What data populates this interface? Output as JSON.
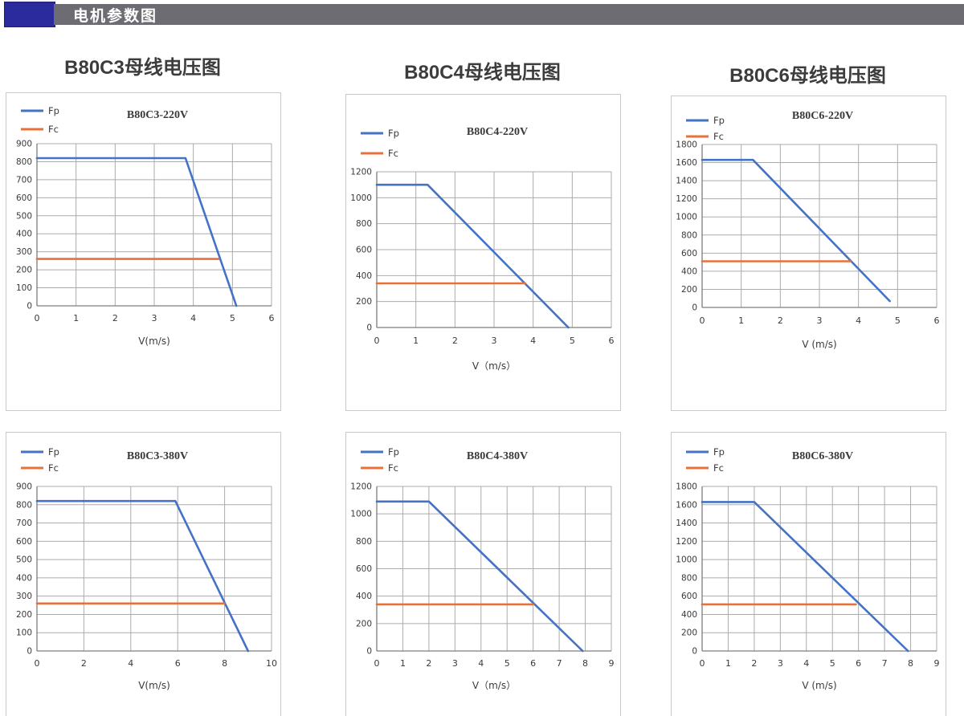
{
  "header": {
    "title": "电机参数图",
    "accent_color": "#2b2b9e",
    "bar_color": "#6c6c72"
  },
  "sections": [
    {
      "heading": "B80C3母线电压图"
    },
    {
      "heading": "B80C4母线电压图"
    },
    {
      "heading": "B80C6母线电压图"
    }
  ],
  "colors": {
    "fp": "#4472c4",
    "fc": "#e8713a",
    "grid": "#ababab",
    "axis": "#7d7d7d",
    "text": "#3a3a3a"
  },
  "chart_data": [
    {
      "type": "line",
      "title": "B80C3-220V",
      "xlabel": "V(m/s)",
      "xlim": [
        0,
        6
      ],
      "xticks": [
        0,
        1,
        2,
        3,
        4,
        5,
        6
      ],
      "ylim": [
        0,
        900
      ],
      "yticks": [
        0,
        100,
        200,
        300,
        400,
        500,
        600,
        700,
        800,
        900
      ],
      "grid": true,
      "legend_position": "top-left",
      "series": [
        {
          "name": "Fp",
          "color": "#4472c4",
          "points": [
            [
              0,
              820
            ],
            [
              3.8,
              820
            ],
            [
              5.1,
              0
            ]
          ]
        },
        {
          "name": "Fc",
          "color": "#e8713a",
          "points": [
            [
              0,
              260
            ],
            [
              4.65,
              260
            ]
          ]
        }
      ]
    },
    {
      "type": "line",
      "title": "B80C4-220V",
      "xlabel": "V（m/s）",
      "xlim": [
        0,
        6
      ],
      "xticks": [
        0,
        1,
        2,
        3,
        4,
        5,
        6
      ],
      "ylim": [
        0,
        1200
      ],
      "yticks": [
        0,
        200,
        400,
        600,
        800,
        1000,
        1200
      ],
      "grid": true,
      "legend_position": "top-left",
      "series": [
        {
          "name": "Fp",
          "color": "#4472c4",
          "points": [
            [
              0,
              1100
            ],
            [
              1.3,
              1100
            ],
            [
              4.9,
              0
            ]
          ]
        },
        {
          "name": "Fc",
          "color": "#e8713a",
          "points": [
            [
              0,
              340
            ],
            [
              3.8,
              340
            ]
          ]
        }
      ]
    },
    {
      "type": "line",
      "title": "B80C6-220V",
      "xlabel": "V (m/s)",
      "xlim": [
        0,
        6
      ],
      "xticks": [
        0,
        1,
        2,
        3,
        4,
        5,
        6
      ],
      "ylim": [
        0,
        1800
      ],
      "yticks": [
        0,
        200,
        400,
        600,
        800,
        1000,
        1200,
        1400,
        1600,
        1800
      ],
      "grid": true,
      "legend_position": "top-left",
      "series": [
        {
          "name": "Fp",
          "color": "#4472c4",
          "points": [
            [
              0,
              1630
            ],
            [
              1.3,
              1630
            ],
            [
              4.8,
              70
            ]
          ]
        },
        {
          "name": "Fc",
          "color": "#e8713a",
          "points": [
            [
              0,
              510
            ],
            [
              3.8,
              510
            ]
          ]
        }
      ]
    },
    {
      "type": "line",
      "title": "B80C3-380V",
      "xlabel": "V(m/s)",
      "xlim": [
        0,
        10
      ],
      "xticks": [
        0,
        2,
        4,
        6,
        8,
        10
      ],
      "ylim": [
        0,
        900
      ],
      "yticks": [
        0,
        100,
        200,
        300,
        400,
        500,
        600,
        700,
        800,
        900
      ],
      "grid": true,
      "legend_position": "top-left",
      "series": [
        {
          "name": "Fp",
          "color": "#4472c4",
          "points": [
            [
              0,
              820
            ],
            [
              5.9,
              820
            ],
            [
              9.0,
              0
            ]
          ]
        },
        {
          "name": "Fc",
          "color": "#e8713a",
          "points": [
            [
              0,
              260
            ],
            [
              8.0,
              260
            ]
          ]
        }
      ]
    },
    {
      "type": "line",
      "title": "B80C4-380V",
      "xlabel": "V（m/s）",
      "xlim": [
        0,
        9
      ],
      "xticks": [
        0,
        1,
        2,
        3,
        4,
        5,
        6,
        7,
        8,
        9
      ],
      "ylim": [
        0,
        1200
      ],
      "yticks": [
        0,
        200,
        400,
        600,
        800,
        1000,
        1200
      ],
      "grid": true,
      "legend_position": "top-left",
      "series": [
        {
          "name": "Fp",
          "color": "#4472c4",
          "points": [
            [
              0,
              1090
            ],
            [
              2.0,
              1090
            ],
            [
              7.9,
              0
            ]
          ]
        },
        {
          "name": "Fc",
          "color": "#e8713a",
          "points": [
            [
              0,
              340
            ],
            [
              6.0,
              340
            ]
          ]
        }
      ]
    },
    {
      "type": "line",
      "title": "B80C6-380V",
      "xlabel": "V (m/s)",
      "xlim": [
        0,
        9
      ],
      "xticks": [
        0,
        1,
        2,
        3,
        4,
        5,
        6,
        7,
        8,
        9
      ],
      "ylim": [
        0,
        1800
      ],
      "yticks": [
        0,
        200,
        400,
        600,
        800,
        1000,
        1200,
        1400,
        1600,
        1800
      ],
      "grid": true,
      "legend_position": "top-left",
      "series": [
        {
          "name": "Fp",
          "color": "#4472c4",
          "points": [
            [
              0,
              1630
            ],
            [
              2.0,
              1630
            ],
            [
              7.9,
              0
            ]
          ]
        },
        {
          "name": "Fc",
          "color": "#e8713a",
          "points": [
            [
              0,
              510
            ],
            [
              5.9,
              510
            ]
          ]
        }
      ]
    }
  ]
}
